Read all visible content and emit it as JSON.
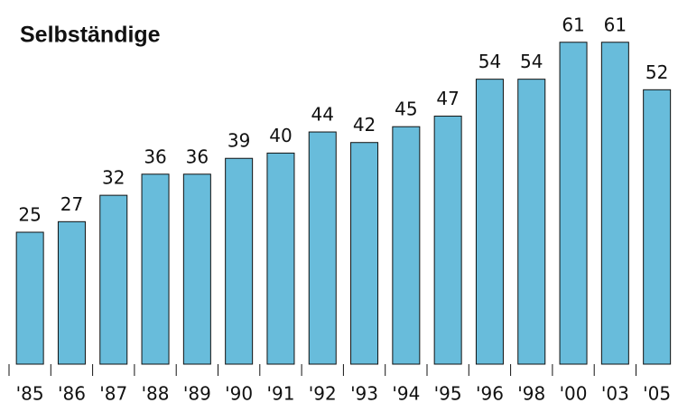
{
  "chart_data": {
    "type": "bar",
    "title": "Selbständige",
    "categories": [
      "'85",
      "'86",
      "'87",
      "'88",
      "'89",
      "'90",
      "'91",
      "'92",
      "'93",
      "'94",
      "'95",
      "'96",
      "'98",
      "'00",
      "'03",
      "'05"
    ],
    "values": [
      25,
      27,
      32,
      36,
      36,
      39,
      40,
      44,
      42,
      45,
      47,
      54,
      54,
      61,
      61,
      52
    ],
    "color": "#68bcdb"
  }
}
